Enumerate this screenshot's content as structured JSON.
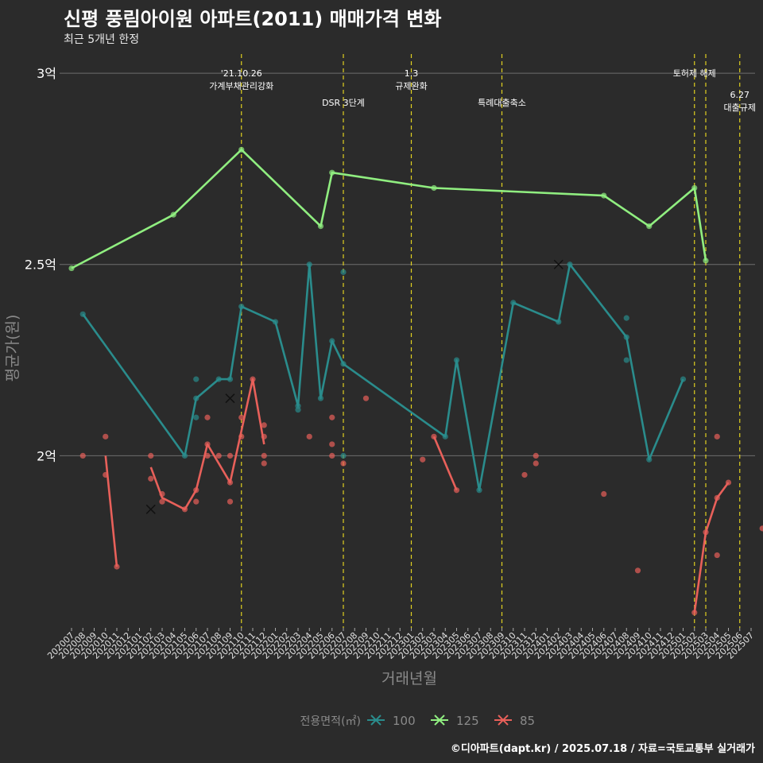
{
  "chart_data": {
    "type": "line",
    "title": "신평 풍림아이원 아파트(2011) 매매가격 변화",
    "subtitle": "최근 5개년 한정",
    "xlabel": "거래년월",
    "ylabel": "평균가(원)",
    "ylim": [
      1.55,
      3.05
    ],
    "y_ticks": [
      {
        "value": 2.0,
        "label": "2억"
      },
      {
        "value": 2.5,
        "label": "2.5억"
      },
      {
        "value": 3.0,
        "label": "3억"
      }
    ],
    "x_categories": [
      "202007",
      "202008",
      "202009",
      "202010",
      "202011",
      "202012",
      "202101",
      "202102",
      "202103",
      "202104",
      "202105",
      "202106",
      "202107",
      "202108",
      "202109",
      "202110",
      "202111",
      "202112",
      "202201",
      "202202",
      "202203",
      "202204",
      "202205",
      "202206",
      "202207",
      "202208",
      "202209",
      "202210",
      "202211",
      "202212",
      "202301",
      "202302",
      "202303",
      "202304",
      "202305",
      "202306",
      "202307",
      "202308",
      "202309",
      "202310",
      "202311",
      "202312",
      "202401",
      "202402",
      "202403",
      "202404",
      "202405",
      "202406",
      "202407",
      "202408",
      "202409",
      "202410",
      "202411",
      "202412",
      "202501",
      "202502",
      "202503",
      "202504",
      "202505",
      "202506",
      "202507"
    ],
    "legend": {
      "title": "전용면적(㎡)",
      "placement": "bottom"
    },
    "events": [
      {
        "x": 15,
        "lines": [
          "'21.10.26",
          "가계부채관리강화"
        ],
        "level": 1
      },
      {
        "x": 24,
        "lines": [
          "DSR 3단계"
        ],
        "level": 2
      },
      {
        "x": 30,
        "lines": [
          "1.3",
          "규제완화"
        ],
        "level": 1
      },
      {
        "x": 38,
        "lines": [
          "특례대출축소"
        ],
        "level": 2
      },
      {
        "x": 55,
        "lines": [
          "토허제 해제"
        ],
        "level": 1
      },
      {
        "x": 56,
        "lines": [],
        "level": 0
      },
      {
        "x": 59,
        "lines": [
          "6.27",
          "대출규제"
        ],
        "level": 3
      }
    ],
    "series": [
      {
        "name": "100",
        "color": "#2a8c8c",
        "line": [
          [
            1,
            2.37
          ],
          [
            10,
            2.0
          ],
          [
            11,
            2.15
          ],
          [
            13,
            2.2
          ],
          [
            14,
            2.2
          ],
          [
            15,
            2.39
          ],
          [
            18,
            2.35
          ],
          [
            20,
            2.13
          ],
          [
            21,
            2.5
          ],
          [
            22,
            2.15
          ],
          [
            23,
            2.3
          ],
          [
            24,
            2.24
          ],
          [
            33,
            2.05
          ],
          [
            34,
            2.25
          ],
          [
            36,
            1.91
          ],
          [
            39,
            2.4
          ],
          [
            43,
            2.35
          ],
          [
            44,
            2.5
          ],
          [
            49,
            2.31
          ],
          [
            51,
            1.99
          ],
          [
            54,
            2.2
          ]
        ],
        "points": [
          [
            1,
            2.37
          ],
          [
            10,
            2.0
          ],
          [
            11,
            2.15
          ],
          [
            11,
            2.2
          ],
          [
            11,
            2.1
          ],
          [
            13,
            2.2
          ],
          [
            14,
            2.2
          ],
          [
            15,
            2.39
          ],
          [
            18,
            2.35
          ],
          [
            20,
            2.13
          ],
          [
            20,
            2.12
          ],
          [
            21,
            2.5
          ],
          [
            22,
            2.15
          ],
          [
            23,
            2.3
          ],
          [
            24,
            2.24
          ],
          [
            24,
            2.48
          ],
          [
            24,
            2.0
          ],
          [
            33,
            2.05
          ],
          [
            34,
            2.25
          ],
          [
            36,
            1.91
          ],
          [
            39,
            2.4
          ],
          [
            43,
            2.35
          ],
          [
            44,
            2.5
          ],
          [
            49,
            2.31
          ],
          [
            49,
            2.36
          ],
          [
            49,
            2.25
          ],
          [
            51,
            1.99
          ],
          [
            54,
            2.2
          ]
        ],
        "crosses": [
          [
            14,
            2.15
          ],
          [
            43,
            2.5
          ]
        ]
      },
      {
        "name": "125",
        "color": "#90ee80",
        "line": [
          [
            0,
            2.49
          ],
          [
            9,
            2.63
          ],
          [
            15,
            2.8
          ],
          [
            22,
            2.6
          ],
          [
            23,
            2.74
          ],
          [
            32,
            2.7
          ],
          [
            47,
            2.68
          ],
          [
            51,
            2.6
          ],
          [
            55,
            2.7
          ],
          [
            56,
            2.51
          ]
        ],
        "points": [
          [
            0,
            2.49
          ],
          [
            9,
            2.63
          ],
          [
            15,
            2.8
          ],
          [
            22,
            2.6
          ],
          [
            23,
            2.74
          ],
          [
            32,
            2.7
          ],
          [
            47,
            2.68
          ],
          [
            51,
            2.6
          ],
          [
            55,
            2.7
          ],
          [
            56,
            2.51
          ]
        ],
        "crosses": []
      },
      {
        "name": "85",
        "color": "#e8605a",
        "line": [
          [
            3,
            2.0
          ],
          [
            4,
            1.71
          ],
          [
            null,
            null
          ],
          [
            7,
            1.97
          ],
          [
            8,
            1.89
          ],
          [
            10,
            1.86
          ],
          [
            11,
            1.91
          ],
          [
            12,
            2.03
          ],
          [
            14,
            1.93
          ],
          [
            16,
            2.2
          ],
          [
            17,
            2.03
          ],
          [
            null,
            null
          ],
          [
            32,
            2.05
          ],
          [
            34,
            1.91
          ],
          [
            null,
            null
          ],
          [
            55,
            1.59
          ],
          [
            56,
            1.8
          ],
          [
            57,
            1.89
          ],
          [
            58,
            1.93
          ]
        ],
        "points": [
          [
            1,
            2.0
          ],
          [
            3,
            2.05
          ],
          [
            3,
            1.95
          ],
          [
            4,
            1.71
          ],
          [
            7,
            2.0
          ],
          [
            7,
            1.94
          ],
          [
            8,
            1.9
          ],
          [
            8,
            1.88
          ],
          [
            10,
            1.86
          ],
          [
            11,
            1.88
          ],
          [
            11,
            1.91
          ],
          [
            12,
            2.1
          ],
          [
            12,
            2.0
          ],
          [
            12,
            2.03
          ],
          [
            13,
            2.0
          ],
          [
            14,
            2.0
          ],
          [
            14,
            1.88
          ],
          [
            14,
            1.93
          ],
          [
            15,
            2.1
          ],
          [
            15,
            2.05
          ],
          [
            16,
            2.2
          ],
          [
            17,
            2.08
          ],
          [
            17,
            2.05
          ],
          [
            17,
            2.0
          ],
          [
            17,
            1.98
          ],
          [
            21,
            2.05
          ],
          [
            23,
            2.03
          ],
          [
            23,
            2.1
          ],
          [
            23,
            2.0
          ],
          [
            24,
            1.98
          ],
          [
            26,
            2.15
          ],
          [
            31,
            1.99
          ],
          [
            32,
            2.05
          ],
          [
            34,
            1.91
          ],
          [
            40,
            1.95
          ],
          [
            41,
            1.98
          ],
          [
            41,
            2.0
          ],
          [
            47,
            1.9
          ],
          [
            50,
            1.7
          ],
          [
            55,
            1.59
          ],
          [
            56,
            1.8
          ],
          [
            57,
            1.74
          ],
          [
            57,
            1.89
          ],
          [
            57,
            2.05
          ],
          [
            58,
            1.93
          ],
          [
            61,
            1.81
          ]
        ],
        "crosses": [
          [
            7,
            1.86
          ]
        ]
      }
    ]
  },
  "caption": "©디아파트(dapt.kr) / 2025.07.18 / 자료=국토교통부 실거래가"
}
